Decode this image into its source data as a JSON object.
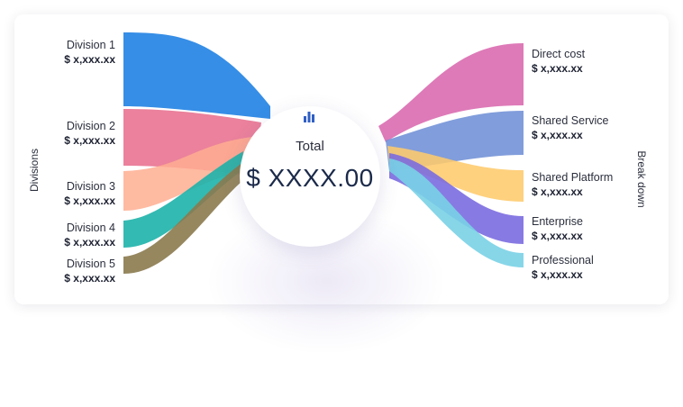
{
  "axis": {
    "left_title": "Divisions",
    "right_title": "Break down"
  },
  "center": {
    "icon": "bar-chart-icon",
    "label": "Total",
    "value": "$ XXXX.00"
  },
  "divisions": [
    {
      "name": "Division 1",
      "value": "$ x,xxx.xx",
      "color": "#2f8ae5"
    },
    {
      "name": "Division 2",
      "value": "$ x,xxx.xx",
      "color": "#e8708e"
    },
    {
      "name": "Division 3",
      "value": "$ x,xxx.xx",
      "color": "#ffae92"
    },
    {
      "name": "Division 4",
      "value": "$ x,xxx.xx",
      "color": "#1db3aa"
    },
    {
      "name": "Division 5",
      "value": "$ x,xxx.xx",
      "color": "#8b7a4e"
    }
  ],
  "breakdown": [
    {
      "name": "Direct cost",
      "value": "$ x,xxx.xx",
      "color": "#dc73b4"
    },
    {
      "name": "Shared Service",
      "value": "$ x,xxx.xx",
      "color": "#6f8fd6"
    },
    {
      "name": "Shared Platform",
      "value": "$ x,xxx.xx",
      "color": "#fecb6c"
    },
    {
      "name": "Enterprise",
      "value": "$ x,xxx.xx",
      "color": "#7b6be0"
    },
    {
      "name": "Professional",
      "value": "$ x,xxx.xx",
      "color": "#79d2e6"
    }
  ]
}
